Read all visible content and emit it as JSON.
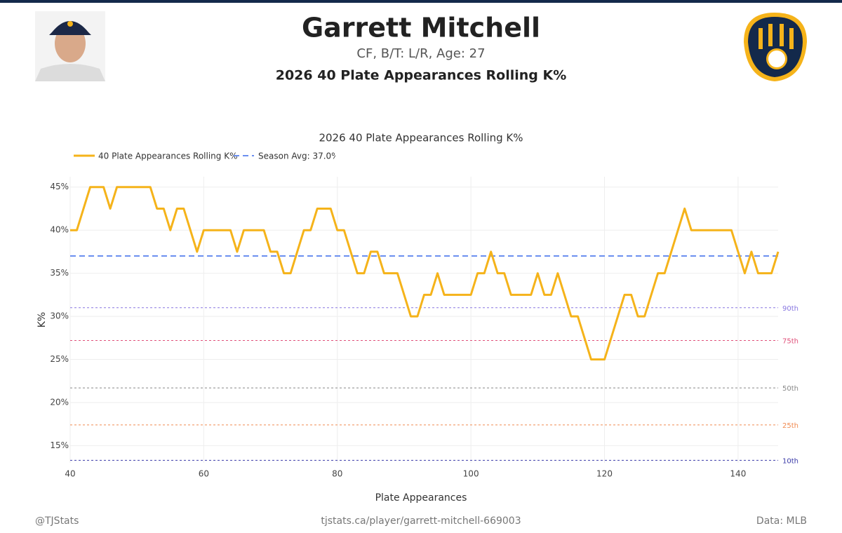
{
  "header": {
    "name": "Garrett Mitchell",
    "subtitle": "CF, B/T: L/R, Age: 27",
    "title": "2026 40 Plate Appearances Rolling K%"
  },
  "chart_data": {
    "type": "line",
    "title": "2026 40 Plate Appearances Rolling K%",
    "x_label": "Plate Appearances",
    "y_label": "K%",
    "x": [
      40,
      41,
      42,
      43,
      44,
      45,
      46,
      47,
      48,
      49,
      50,
      51,
      52,
      53,
      54,
      55,
      56,
      57,
      58,
      59,
      60,
      61,
      62,
      63,
      64,
      65,
      66,
      67,
      68,
      69,
      70,
      71,
      72,
      73,
      74,
      75,
      76,
      77,
      78,
      79,
      80,
      81,
      82,
      83,
      84,
      85,
      86,
      87,
      88,
      89,
      90,
      91,
      92,
      93,
      94,
      95,
      96,
      97,
      98,
      99,
      100,
      101,
      102,
      103,
      104,
      105,
      106,
      107,
      108,
      109,
      110,
      111,
      112,
      113,
      114,
      115,
      116,
      117,
      118,
      119,
      120,
      121,
      122,
      123,
      124,
      125,
      126,
      127,
      128,
      129,
      130,
      131,
      132,
      133,
      134,
      135,
      136,
      137,
      138,
      139,
      140,
      141,
      142,
      143,
      144,
      145,
      146
    ],
    "series": [
      {
        "name": "40 Plate Appearances Rolling K%",
        "color": "#f5b31a",
        "values": [
          40,
          40,
          42.5,
          45,
          45,
          45,
          42.5,
          45,
          45,
          45,
          45,
          45,
          45,
          42.5,
          42.5,
          40,
          42.5,
          42.5,
          40,
          37.5,
          40,
          40,
          40,
          40,
          40,
          37.5,
          40,
          40,
          40,
          40,
          37.5,
          37.5,
          35,
          35,
          37.5,
          40,
          40,
          42.5,
          42.5,
          42.5,
          40,
          40,
          37.5,
          35,
          35,
          37.5,
          37.5,
          35,
          35,
          35,
          32.5,
          30,
          30,
          32.5,
          32.5,
          35,
          32.5,
          32.5,
          32.5,
          32.5,
          32.5,
          35,
          35,
          37.5,
          35,
          35,
          32.5,
          32.5,
          32.5,
          32.5,
          35,
          32.5,
          32.5,
          35,
          32.5,
          30,
          30,
          27.5,
          25,
          25,
          25,
          27.5,
          30,
          32.5,
          32.5,
          30,
          30,
          32.5,
          35,
          35,
          37.5,
          40,
          42.5,
          40,
          40,
          40,
          40,
          40,
          40,
          40,
          37.5,
          35,
          37.5,
          35,
          35,
          35,
          37.5
        ]
      }
    ],
    "season_avg": {
      "name": "Season Avg: 37.0%",
      "value": 37.0,
      "color": "#6b8ff0"
    },
    "percentiles": [
      {
        "label": "90th",
        "value": 31.0,
        "color": "#8877e0"
      },
      {
        "label": "75th",
        "value": 27.2,
        "color": "#e0507a"
      },
      {
        "label": "50th",
        "value": 21.7,
        "color": "#888888"
      },
      {
        "label": "25th",
        "value": 17.4,
        "color": "#f08a50"
      },
      {
        "label": "10th",
        "value": 13.3,
        "color": "#3a3aa8"
      }
    ],
    "xlim": [
      40,
      146
    ],
    "xticks": [
      40,
      60,
      80,
      100,
      120,
      140
    ],
    "ylim": [
      13,
      46.2
    ],
    "yticks": [
      {
        "value": 15,
        "label": "15%"
      },
      {
        "value": 20,
        "label": "20%"
      },
      {
        "value": 25,
        "label": "25%"
      },
      {
        "value": 30,
        "label": "30%"
      },
      {
        "value": 35,
        "label": "35%"
      },
      {
        "value": 40,
        "label": "40%"
      },
      {
        "value": 45,
        "label": "45%"
      }
    ],
    "grid": true
  },
  "footer": {
    "left": "@TJStats",
    "center": "tjstats.ca/player/garrett-mitchell-669003",
    "right": "Data: MLB"
  }
}
